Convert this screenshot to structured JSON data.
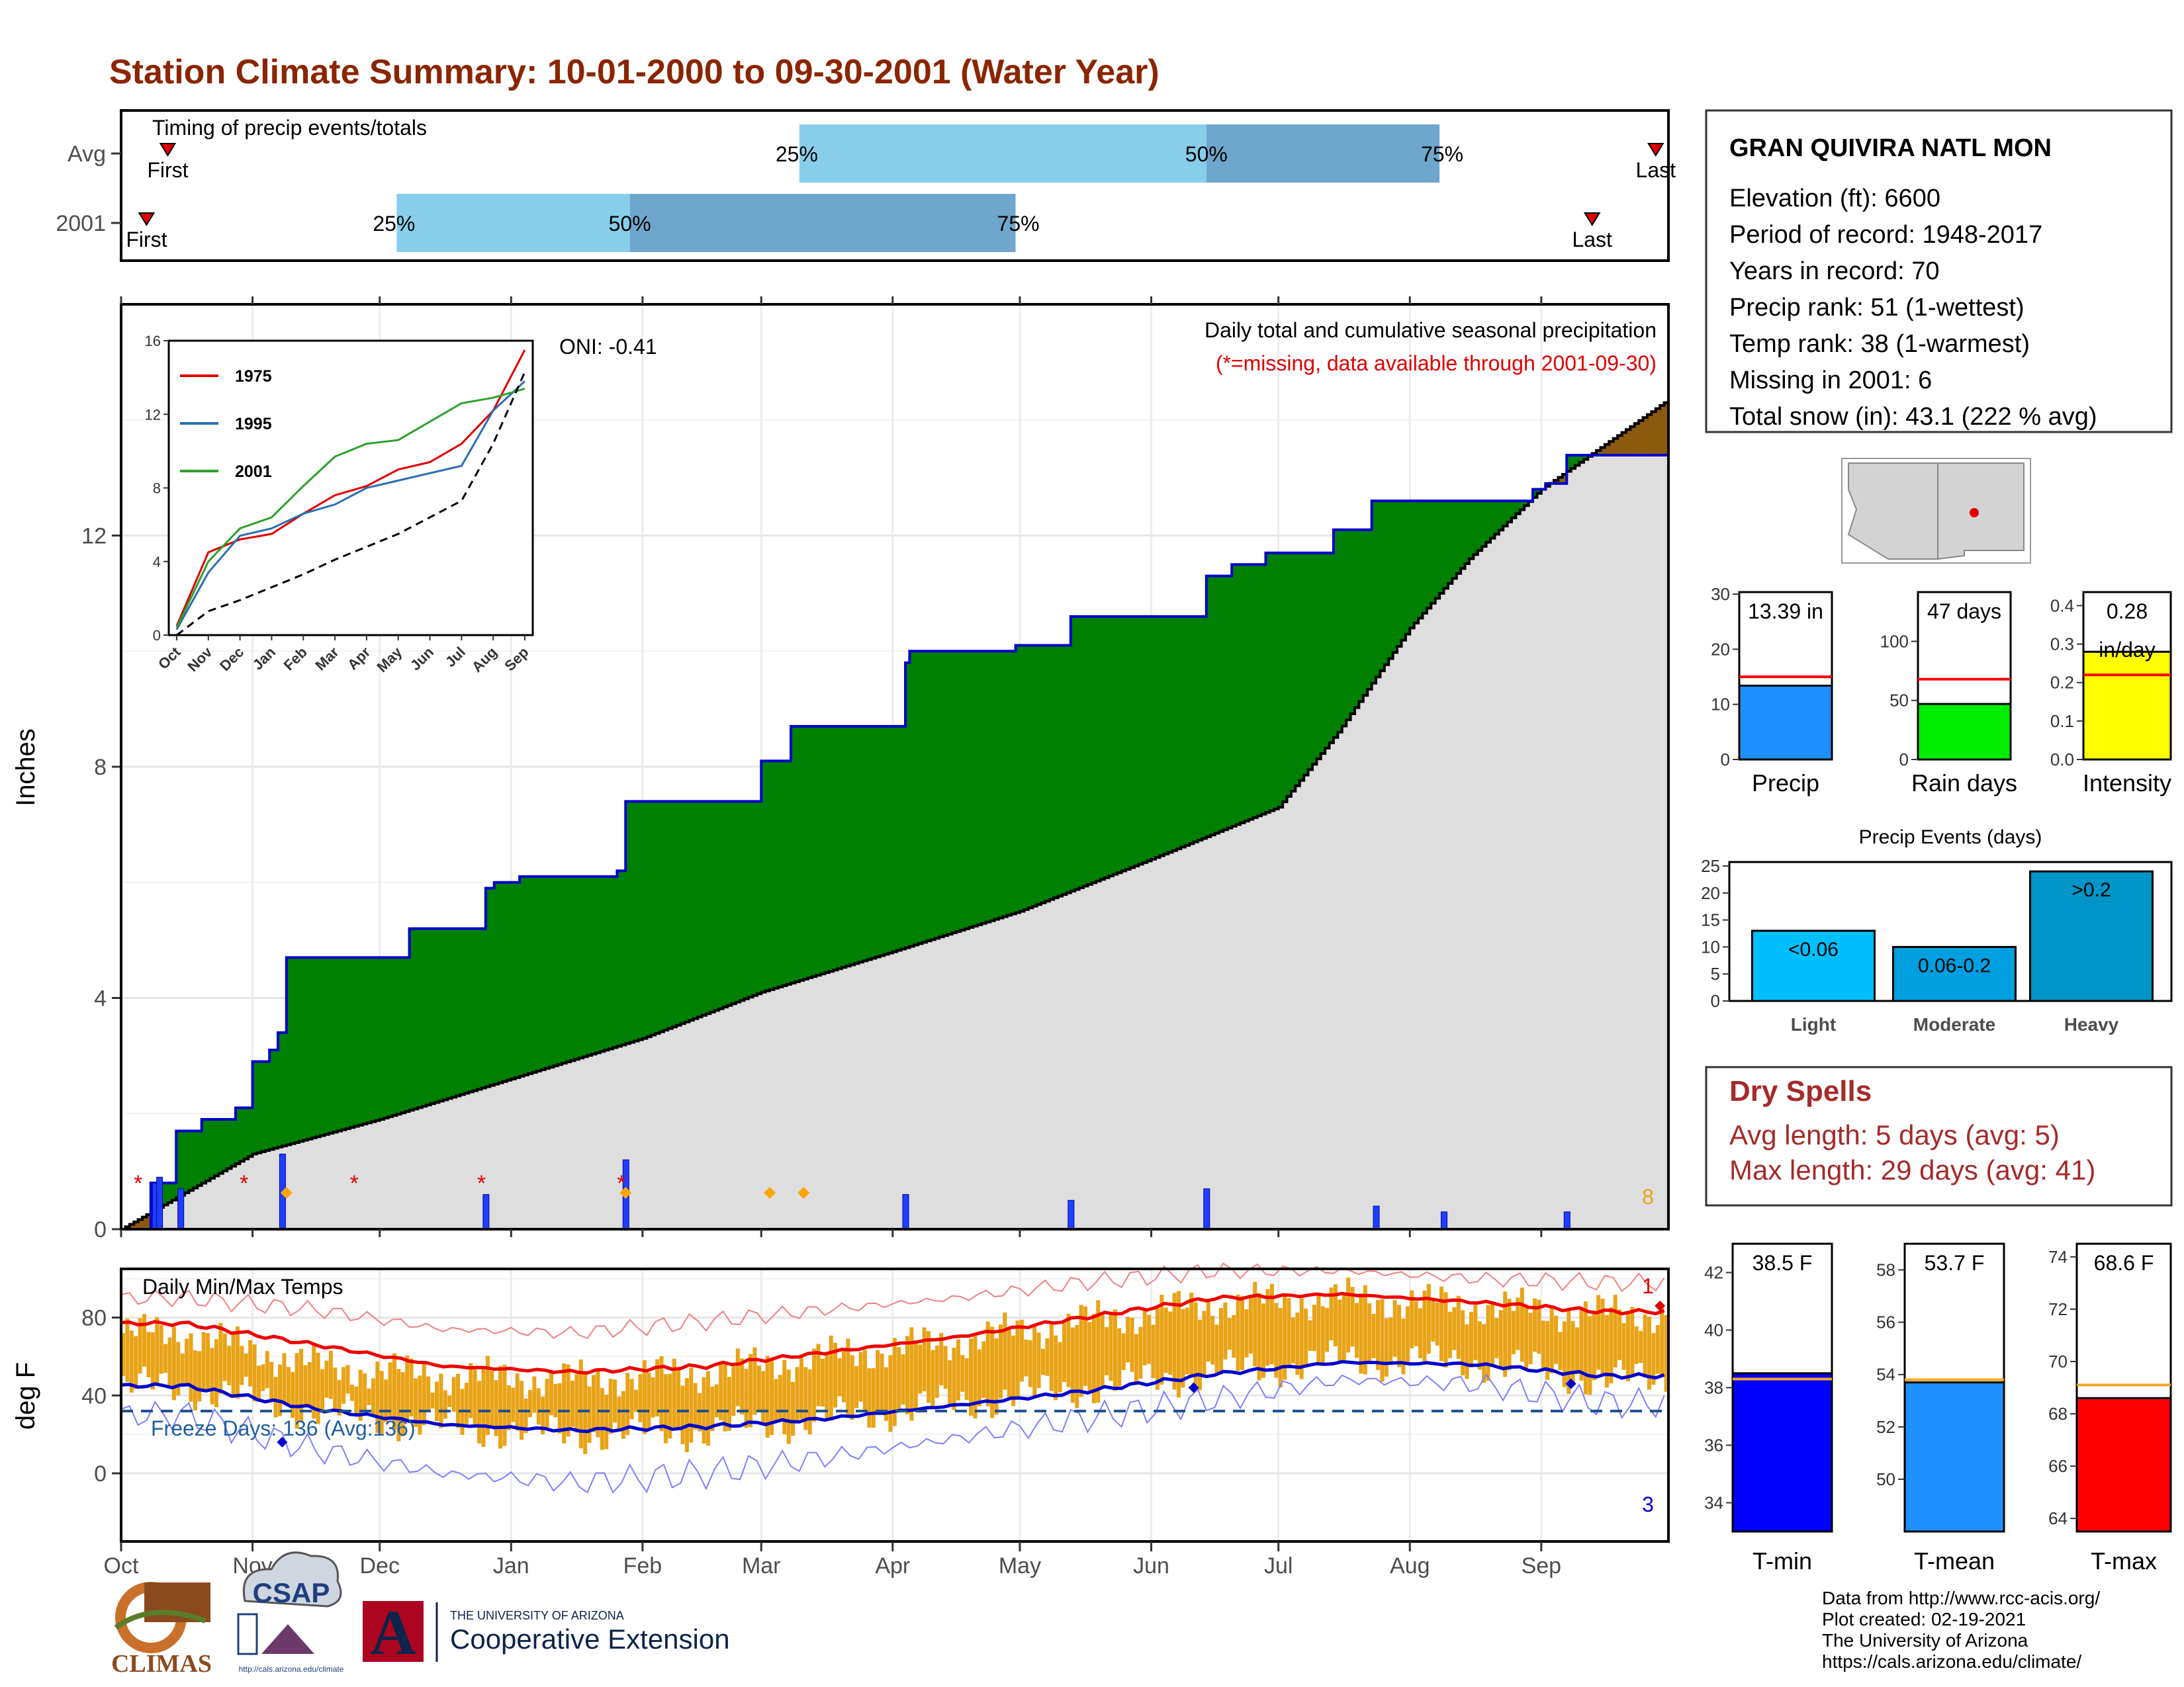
{
  "title": "Station Climate Summary: 10-01-2000 to 09-30-2001 (Water Year)",
  "timing_panel": {
    "caption": "Timing of precip events/totals",
    "rows": [
      {
        "label": "Avg",
        "first": "First",
        "last": "Last",
        "p25": "25%",
        "p50": "50%",
        "p75": "75%"
      },
      {
        "label": "2001",
        "first": "First",
        "last": "Last",
        "p25": "25%",
        "p50": "50%",
        "p75": "75%"
      }
    ]
  },
  "precip_panel": {
    "ylabel": "Inches",
    "oni": "ONI: -0.41",
    "legend_title": "Daily total and cumulative seasonal precipitation",
    "missing_note": "(*=missing, data available through 2001-09-30)",
    "corner_count": "8",
    "y_ticks": [
      "0",
      "4",
      "8",
      "12"
    ]
  },
  "temp_panel": {
    "ylabel": "deg F",
    "caption": "Daily Min/Max Temps",
    "freeze": "Freeze Days: 136 (Avg:136)",
    "top_count": "1",
    "bottom_count": "3",
    "y_ticks": [
      "0",
      "40",
      "80"
    ]
  },
  "months": [
    "Oct",
    "Nov",
    "Dec",
    "Jan",
    "Feb",
    "Mar",
    "Apr",
    "May",
    "Jun",
    "Jul",
    "Aug",
    "Sep"
  ],
  "inset": {
    "y_ticks": [
      "0",
      "4",
      "8",
      "12",
      "16"
    ],
    "months": [
      "Oct",
      "Nov",
      "Dec",
      "Jan",
      "Feb",
      "Mar",
      "Apr",
      "May",
      "Jun",
      "Jul",
      "Aug",
      "Sep"
    ],
    "legend": [
      "1975",
      "1995",
      "2001"
    ]
  },
  "station": {
    "name": "GRAN QUIVIRA NATL MON",
    "lines": [
      "Elevation (ft): 6600",
      "Period of record: 1948-2017",
      "Years in record: 70",
      "Precip rank: 51 (1-wettest)",
      "Temp rank: 38 (1-warmest)",
      "Missing in 2001: 6",
      "Total snow (in): 43.1 (222 % avg)"
    ]
  },
  "mini_bars": [
    {
      "value_label": "13.39 in",
      "xlabel": "Precip",
      "ticks": [
        "0",
        "10",
        "20",
        "30"
      ]
    },
    {
      "value_label": "47 days",
      "xlabel": "Rain days",
      "ticks": [
        "0",
        "50",
        "100"
      ]
    },
    {
      "value_label": "0.28",
      "unit": "in/day",
      "xlabel": "Intensity",
      "ticks": [
        "0.0",
        "0.1",
        "0.2",
        "0.3",
        "0.4"
      ]
    }
  ],
  "events": {
    "title": "Precip Events (days)",
    "bar_labels": [
      "<0.06",
      "0.06-0.2",
      ">0.2"
    ],
    "categories": [
      "Light",
      "Moderate",
      "Heavy"
    ],
    "ticks": [
      "0",
      "5",
      "10",
      "15",
      "20",
      "25"
    ]
  },
  "dry_spells": {
    "title": "Dry Spells",
    "avg": "Avg length: 5 days (avg: 5)",
    "max": "Max length: 29 days (avg: 41)"
  },
  "temp_bars": [
    {
      "value_label": "38.5 F",
      "xlabel": "T-min",
      "ticks": [
        "34",
        "36",
        "38",
        "40",
        "42"
      ]
    },
    {
      "value_label": "53.7 F",
      "xlabel": "T-mean",
      "ticks": [
        "50",
        "52",
        "54",
        "56",
        "58"
      ]
    },
    {
      "value_label": "68.6 F",
      "xlabel": "T-max",
      "ticks": [
        "64",
        "66",
        "68",
        "70",
        "72",
        "74"
      ]
    }
  ],
  "credits": [
    "Data from http://www.rcc-acis.org/",
    "Plot created: 02-19-2021",
    "The University of Arizona",
    "https://cals.arizona.edu/climate/"
  ],
  "logos": {
    "climas": "CLIMAS",
    "csap": "CSAP",
    "csap_url": "http://cals.arizona.edu/climate",
    "ua_small": "THE UNIVERSITY OF ARIZONA",
    "ua_big": "Cooperative Extension",
    "ua_letter": "A"
  },
  "colors": {
    "title": "#8b2500",
    "green": "#008000",
    "blue_line": "#0000cc",
    "gray_area": "#dedede",
    "brown": "#8b5a0f",
    "orange": "#e8a317",
    "light_blue": "#87ceeb",
    "mid_blue": "#6fa6cd",
    "red": "#e00000",
    "dry": "#a52a2a"
  },
  "chart_data": [
    {
      "type": "bar",
      "title": "Timing of precip events/totals",
      "categories": [
        "Avg",
        "2001"
      ],
      "series": [
        {
          "name": "Avg",
          "values": {
            "First": "2000-10-12",
            "25%": "2001-03-10",
            "50%": "2001-06-14",
            "75%": "2001-08-08",
            "Last": "2001-09-28"
          }
        },
        {
          "name": "2001",
          "values": {
            "First": "2000-10-07",
            "25%": "2000-12-05",
            "50%": "2001-01-29",
            "75%": "2001-04-30",
            "Last": "2001-09-13"
          }
        }
      ]
    },
    {
      "type": "area",
      "title": "Daily total and cumulative seasonal precipitation",
      "ylabel": "Inches",
      "ylim": [
        0,
        16
      ],
      "xlim": [
        "2000-10-01",
        "2001-09-30"
      ],
      "series": [
        {
          "name": "cumulative 2001",
          "x": [
            "2000-10-01",
            "2000-10-08",
            "2000-10-14",
            "2000-10-20",
            "2000-10-28",
            "2000-11-01",
            "2000-11-05",
            "2000-11-07",
            "2000-11-09",
            "2000-12-08",
            "2000-12-26",
            "2000-12-28",
            "2001-01-03",
            "2001-01-26",
            "2001-01-28",
            "2001-02-25",
            "2001-03-01",
            "2001-03-08",
            "2001-04-04",
            "2001-04-05",
            "2001-04-30",
            "2001-05-13",
            "2001-06-13",
            "2001-06-14",
            "2001-06-20",
            "2001-06-28",
            "2001-07-14",
            "2001-07-23",
            "2001-08-30",
            "2001-09-02",
            "2001-09-07",
            "2001-09-30"
          ],
          "values": [
            0,
            0.8,
            1.7,
            1.9,
            2.1,
            2.9,
            3.1,
            3.4,
            4.7,
            5.2,
            5.9,
            6.0,
            6.1,
            6.2,
            7.4,
            7.4,
            8.1,
            8.7,
            9.8,
            10.0,
            10.1,
            10.6,
            10.6,
            11.3,
            11.5,
            11.7,
            12.1,
            12.6,
            12.8,
            12.9,
            13.39,
            13.39
          ]
        },
        {
          "name": "average cumulative",
          "x": [
            "2000-10-01",
            "2000-11-01",
            "2000-12-01",
            "2001-01-01",
            "2001-02-01",
            "2001-03-01",
            "2001-04-01",
            "2001-05-01",
            "2001-06-01",
            "2001-07-01",
            "2001-07-15",
            "2001-08-01",
            "2001-08-15",
            "2001-09-01",
            "2001-09-30"
          ],
          "values": [
            0,
            1.3,
            1.9,
            2.6,
            3.3,
            4.1,
            4.8,
            5.5,
            6.4,
            7.3,
            8.6,
            10.4,
            11.6,
            12.8,
            14.3
          ]
        }
      ],
      "daily_bars": {
        "x": [
          "2000-10-09",
          "2000-10-10",
          "2000-10-15",
          "2000-11-08",
          "2000-12-26",
          "2001-01-28",
          "2001-04-04",
          "2001-05-13",
          "2001-06-14",
          "2001-07-24",
          "2001-08-09",
          "2001-09-07"
        ],
        "values": [
          0.8,
          0.9,
          0.7,
          1.3,
          0.6,
          1.2,
          0.6,
          0.5,
          0.7,
          0.4,
          0.3,
          0.3
        ]
      },
      "missing_marks": [
        "2000-10-05",
        "2000-10-30",
        "2000-11-25",
        "2000-12-25",
        "2001-01-27"
      ]
    },
    {
      "type": "line",
      "title": "Daily Min/Max Temps",
      "ylabel": "deg F",
      "ylim": [
        -35,
        105
      ],
      "x": [
        "Oct",
        "Nov",
        "Dec",
        "Jan",
        "Feb",
        "Mar",
        "Apr",
        "May",
        "Jun",
        "Jul",
        "Aug",
        "Sep"
      ],
      "series": [
        {
          "name": "avg max",
          "values": [
            77,
            66,
            55,
            52,
            55,
            62,
            70,
            80,
            90,
            92,
            88,
            83
          ]
        },
        {
          "name": "avg min",
          "values": [
            45,
            33,
            25,
            22,
            24,
            28,
            35,
            42,
            51,
            57,
            56,
            50
          ]
        },
        {
          "name": "record max",
          "values": [
            90,
            84,
            74,
            72,
            78,
            84,
            90,
            98,
            104,
            104,
            100,
            98
          ]
        },
        {
          "name": "record min",
          "values": [
            30,
            12,
            0,
            -5,
            0,
            8,
            18,
            28,
            38,
            48,
            46,
            36
          ]
        },
        {
          "name": "daily max 2001",
          "values": [
            72,
            55,
            50,
            48,
            52,
            60,
            68,
            78,
            87,
            90,
            86,
            82
          ]
        },
        {
          "name": "daily min 2001",
          "values": [
            44,
            32,
            24,
            20,
            22,
            28,
            36,
            44,
            52,
            58,
            57,
            48
          ]
        }
      ],
      "freeze_line": 32
    },
    {
      "type": "bar",
      "categories": [
        "Precip"
      ],
      "values": [
        13.39
      ],
      "avg": 15,
      "ylim": [
        0,
        30
      ]
    },
    {
      "type": "bar",
      "categories": [
        "Rain days"
      ],
      "values": [
        47
      ],
      "avg": 68,
      "ylim": [
        0,
        140
      ]
    },
    {
      "type": "bar",
      "categories": [
        "Intensity"
      ],
      "values": [
        0.28
      ],
      "avg": 0.22,
      "ylim": [
        0,
        0.43
      ]
    },
    {
      "type": "bar",
      "title": "Precip Events (days)",
      "categories": [
        "Light",
        "Moderate",
        "Heavy"
      ],
      "values": [
        13,
        10,
        24
      ],
      "ylim": [
        0,
        25
      ]
    },
    {
      "type": "bar",
      "categories": [
        "T-min"
      ],
      "values": [
        38.5
      ],
      "avg": 38.3,
      "ylim": [
        33,
        43
      ]
    },
    {
      "type": "bar",
      "categories": [
        "T-mean"
      ],
      "values": [
        53.7
      ],
      "avg": 53.8,
      "ylim": [
        48,
        59
      ]
    },
    {
      "type": "bar",
      "categories": [
        "T-max"
      ],
      "values": [
        68.6
      ],
      "avg": 69.1,
      "ylim": [
        63.5,
        74.5
      ]
    },
    {
      "type": "line",
      "title": "inset",
      "ylim": [
        0,
        16
      ],
      "x": [
        "Oct",
        "Nov",
        "Dec",
        "Jan",
        "Feb",
        "Mar",
        "Apr",
        "May",
        "Jun",
        "Jul",
        "Aug",
        "Sep"
      ],
      "series": [
        {
          "name": "1975",
          "values": [
            0.5,
            4.5,
            5.2,
            5.5,
            6.6,
            7.6,
            8.1,
            9.0,
            9.4,
            10.4,
            12.2,
            15.5
          ]
        },
        {
          "name": "1995",
          "values": [
            0.3,
            3.4,
            5.4,
            5.8,
            6.6,
            7.1,
            8.0,
            8.4,
            8.8,
            9.2,
            12.2,
            13.8
          ]
        },
        {
          "name": "2001",
          "values": [
            0.4,
            4.0,
            5.8,
            6.4,
            8.1,
            9.7,
            10.4,
            10.6,
            11.6,
            12.6,
            12.9,
            13.39
          ]
        },
        {
          "name": "average",
          "values": [
            0,
            1.3,
            1.9,
            2.6,
            3.3,
            4.1,
            4.8,
            5.5,
            6.4,
            7.3,
            10.4,
            14.3
          ]
        }
      ]
    },
    {
      "type": "map",
      "title": "station location",
      "marker": "Gran Quivira, NM"
    }
  ]
}
